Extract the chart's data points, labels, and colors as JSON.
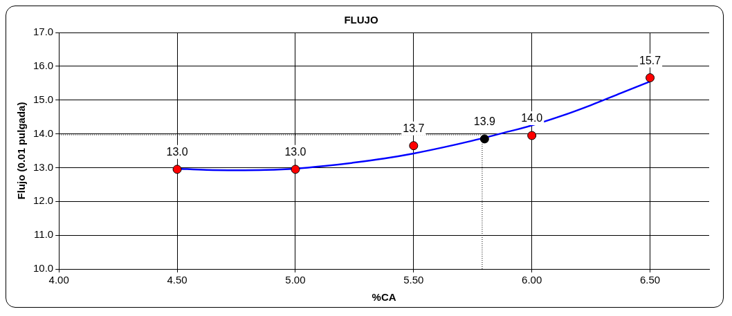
{
  "chart_data": {
    "type": "scatter",
    "title": "FLUJO",
    "xlabel": "%CA",
    "ylabel": "Flujo (0.01 pulgada)",
    "xlim": [
      4.0,
      6.75
    ],
    "ylim": [
      10.0,
      17.0
    ],
    "xticks": [
      {
        "value": 4,
        "label": "4.00"
      },
      {
        "value": 4.5,
        "label": "4.50"
      },
      {
        "value": 5,
        "label": "5.00"
      },
      {
        "value": 5.5,
        "label": "5.50"
      },
      {
        "value": 6,
        "label": "6.00"
      },
      {
        "value": 6.5,
        "label": "6.50"
      }
    ],
    "yticks": [
      {
        "value": 10,
        "label": "10.0"
      },
      {
        "value": 11,
        "label": "11.0"
      },
      {
        "value": 12,
        "label": "12.0"
      },
      {
        "value": 13,
        "label": "13.0"
      },
      {
        "value": 14,
        "label": "14.0"
      },
      {
        "value": 15,
        "label": "15.0"
      },
      {
        "value": 16,
        "label": "16.0"
      },
      {
        "value": 17,
        "label": "17.0"
      }
    ],
    "grid": true,
    "series": [
      {
        "type": "line",
        "color": "#0000ff",
        "marker": "none",
        "x": [
          4.5,
          4.625,
          4.75,
          4.875,
          5.0,
          5.125,
          5.25,
          5.375,
          5.5,
          5.625,
          5.75,
          5.875,
          6.0,
          6.125,
          6.25,
          6.375,
          6.5
        ],
        "values": [
          12.97,
          12.93,
          12.92,
          12.93,
          12.97,
          13.05,
          13.15,
          13.27,
          13.42,
          13.6,
          13.8,
          14.02,
          14.25,
          14.53,
          14.85,
          15.2,
          15.55
        ]
      },
      {
        "type": "scatter",
        "color": "#ff0000",
        "marker": "circle",
        "x": [
          4.5,
          5.0,
          5.5,
          6.0,
          6.5
        ],
        "values": [
          12.95,
          12.95,
          13.65,
          13.95,
          15.66
        ],
        "value_labels": [
          "13.0",
          "13.0",
          "13.7",
          "14.0",
          "15.7"
        ]
      },
      {
        "type": "scatter",
        "color": "#000000",
        "marker": "circle",
        "x": [
          5.8
        ],
        "values": [
          13.85
        ],
        "value_labels": [
          "13.9"
        ]
      }
    ],
    "ref_lines": [
      {
        "axis": "y",
        "value": 13.97,
        "line_style": "dotted",
        "color": "#000000"
      },
      {
        "axis": "x",
        "value": 5.79,
        "line_style": "dotted",
        "color": "#000000"
      }
    ]
  }
}
